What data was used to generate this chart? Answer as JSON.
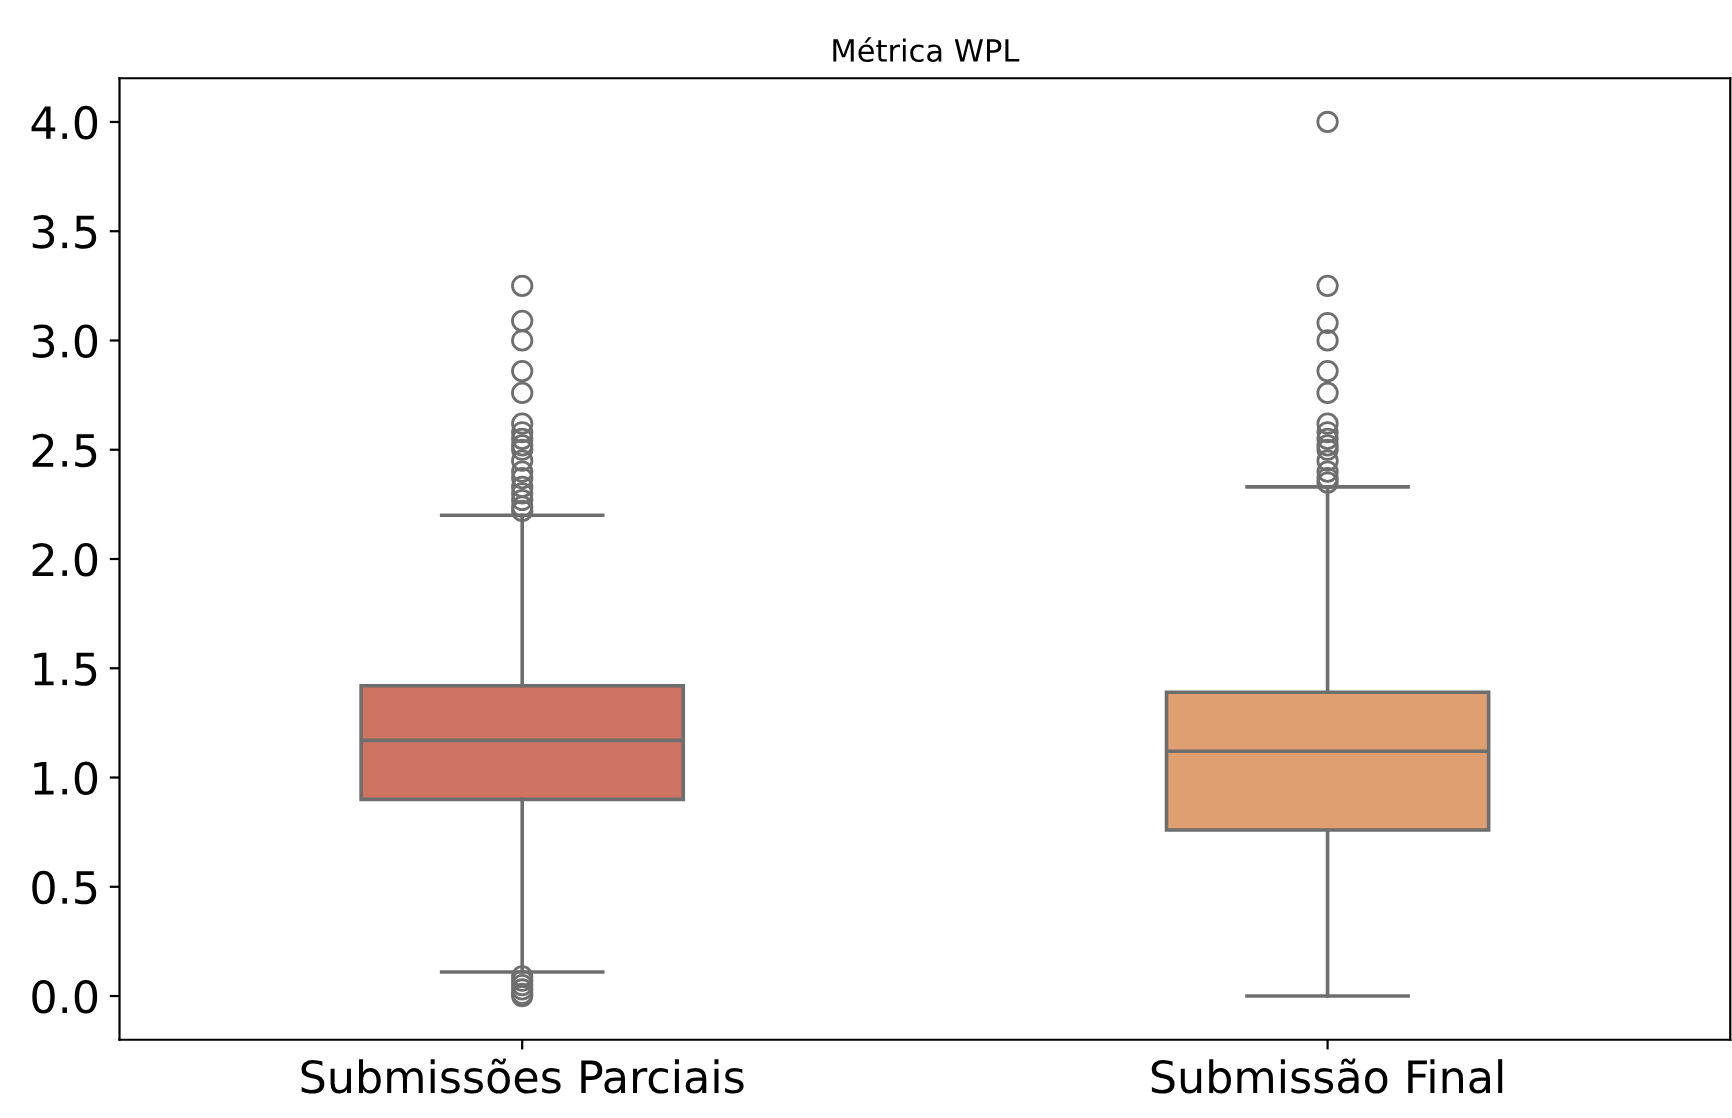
{
  "chart_data": {
    "type": "box",
    "title": "Métrica WPL",
    "categories": [
      "Submissões Parciais",
      "Submissão Final"
    ],
    "colors": [
      "#cf7462",
      "#e09f70"
    ],
    "boxes": [
      {
        "low": 0.11,
        "q1": 0.9,
        "median": 1.17,
        "q3": 1.42,
        "high": 2.2,
        "outliers": [
          3.25,
          3.09,
          3.0,
          2.86,
          2.76,
          2.62,
          2.58,
          2.55,
          2.52,
          2.5,
          2.45,
          2.4,
          2.37,
          2.33,
          2.3,
          2.27,
          2.24,
          2.22,
          0.09,
          0.07,
          0.05,
          0.03,
          0.01,
          0.0
        ]
      },
      {
        "low": 0.0,
        "q1": 0.76,
        "median": 1.12,
        "q3": 1.39,
        "high": 2.33,
        "outliers": [
          4.0,
          3.25,
          3.08,
          3.0,
          2.86,
          2.76,
          2.62,
          2.58,
          2.55,
          2.52,
          2.5,
          2.45,
          2.4,
          2.37,
          2.35
        ]
      }
    ],
    "ylim": [
      -0.2,
      4.2
    ],
    "yticks": [
      {
        "value": 0,
        "label": "0.0"
      },
      {
        "value": 0.5,
        "label": "0.5"
      },
      {
        "value": 1,
        "label": "1.0"
      },
      {
        "value": 1.5,
        "label": "1.5"
      },
      {
        "value": 2,
        "label": "2.0"
      },
      {
        "value": 2.5,
        "label": "2.5"
      },
      {
        "value": 3,
        "label": "3.0"
      },
      {
        "value": 3.5,
        "label": "3.5"
      },
      {
        "value": 4,
        "label": "4.0"
      }
    ],
    "grid": false
  }
}
